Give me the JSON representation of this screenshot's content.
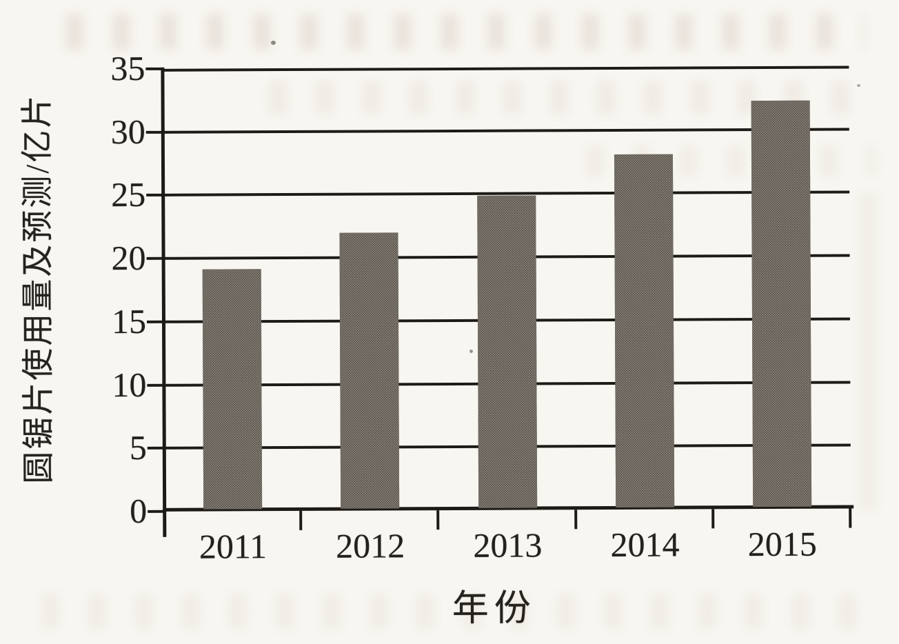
{
  "page": {
    "background_color": "#f8f6f1",
    "media": "scanned book page"
  },
  "chart_data": {
    "type": "bar",
    "title": "",
    "categories": [
      "2011",
      "2012",
      "2013",
      "2014",
      "2015"
    ],
    "values": [
      19,
      21.8,
      24.7,
      27.9,
      32.1
    ],
    "xlabel": "年份",
    "ylabel": "圆锯片使用量及预测/亿片",
    "ylim": [
      0,
      35
    ],
    "yticks": [
      0,
      5,
      10,
      15,
      20,
      25,
      30,
      35
    ],
    "grid": "horizontal gridline at every y tick",
    "legend_position": "none",
    "series_count": 1,
    "bar_color": "#2d2a25",
    "bar_halftone_dot_color": "#8d867d",
    "axis_color": "#1e1b17",
    "label_color": "#24211d"
  }
}
